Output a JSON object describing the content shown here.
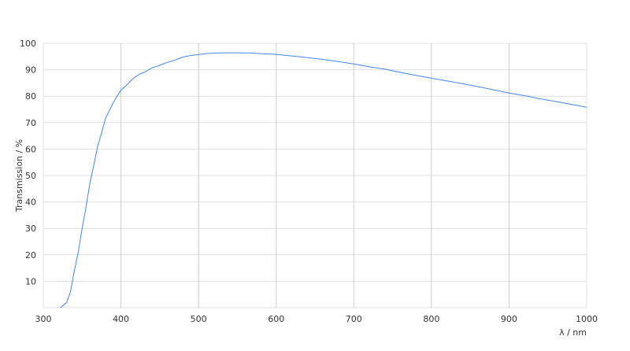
{
  "chart_data": {
    "type": "line",
    "title": "",
    "xlabel": "λ / nm",
    "ylabel": "Transmission / %",
    "xlim": [
      300,
      1000
    ],
    "ylim": [
      0,
      100
    ],
    "xticks": [
      300,
      400,
      500,
      600,
      700,
      800,
      900,
      1000
    ],
    "yticks": [
      10,
      20,
      30,
      40,
      50,
      60,
      70,
      80,
      90,
      100
    ],
    "grid": true,
    "colors": {
      "line": "#4285f4",
      "grid": "#e0e0e0",
      "vgrid": "#cccccc"
    },
    "series": [
      {
        "x": [
          322,
          330,
          335,
          340,
          345,
          350,
          355,
          360,
          365,
          370,
          375,
          380,
          385,
          390,
          395,
          400,
          405,
          410,
          415,
          420,
          425,
          430,
          440,
          450,
          460,
          470,
          480,
          490,
          500,
          510,
          520,
          530,
          550,
          570,
          580,
          600,
          620,
          640,
          660,
          680,
          700,
          720,
          740,
          760,
          780,
          800,
          820,
          840,
          860,
          880,
          900,
          920,
          940,
          960,
          980,
          1000
        ],
        "y": [
          0,
          2,
          6,
          14,
          21,
          30,
          38,
          47,
          54,
          61,
          66,
          71.5,
          74.5,
          77.5,
          80,
          82.3,
          83.5,
          85,
          86.5,
          87.6,
          88.5,
          89,
          90.7,
          91.7,
          92.8,
          93.7,
          94.8,
          95.4,
          95.7,
          96.1,
          96.3,
          96.4,
          96.4,
          96.3,
          96.1,
          95.8,
          95.2,
          94.6,
          93.9,
          93.1,
          92.2,
          91.1,
          90.2,
          89,
          87.9,
          86.8,
          85.8,
          84.7,
          83.6,
          82.4,
          81.2,
          80.2,
          79,
          78,
          76.9,
          75.8
        ]
      }
    ]
  }
}
